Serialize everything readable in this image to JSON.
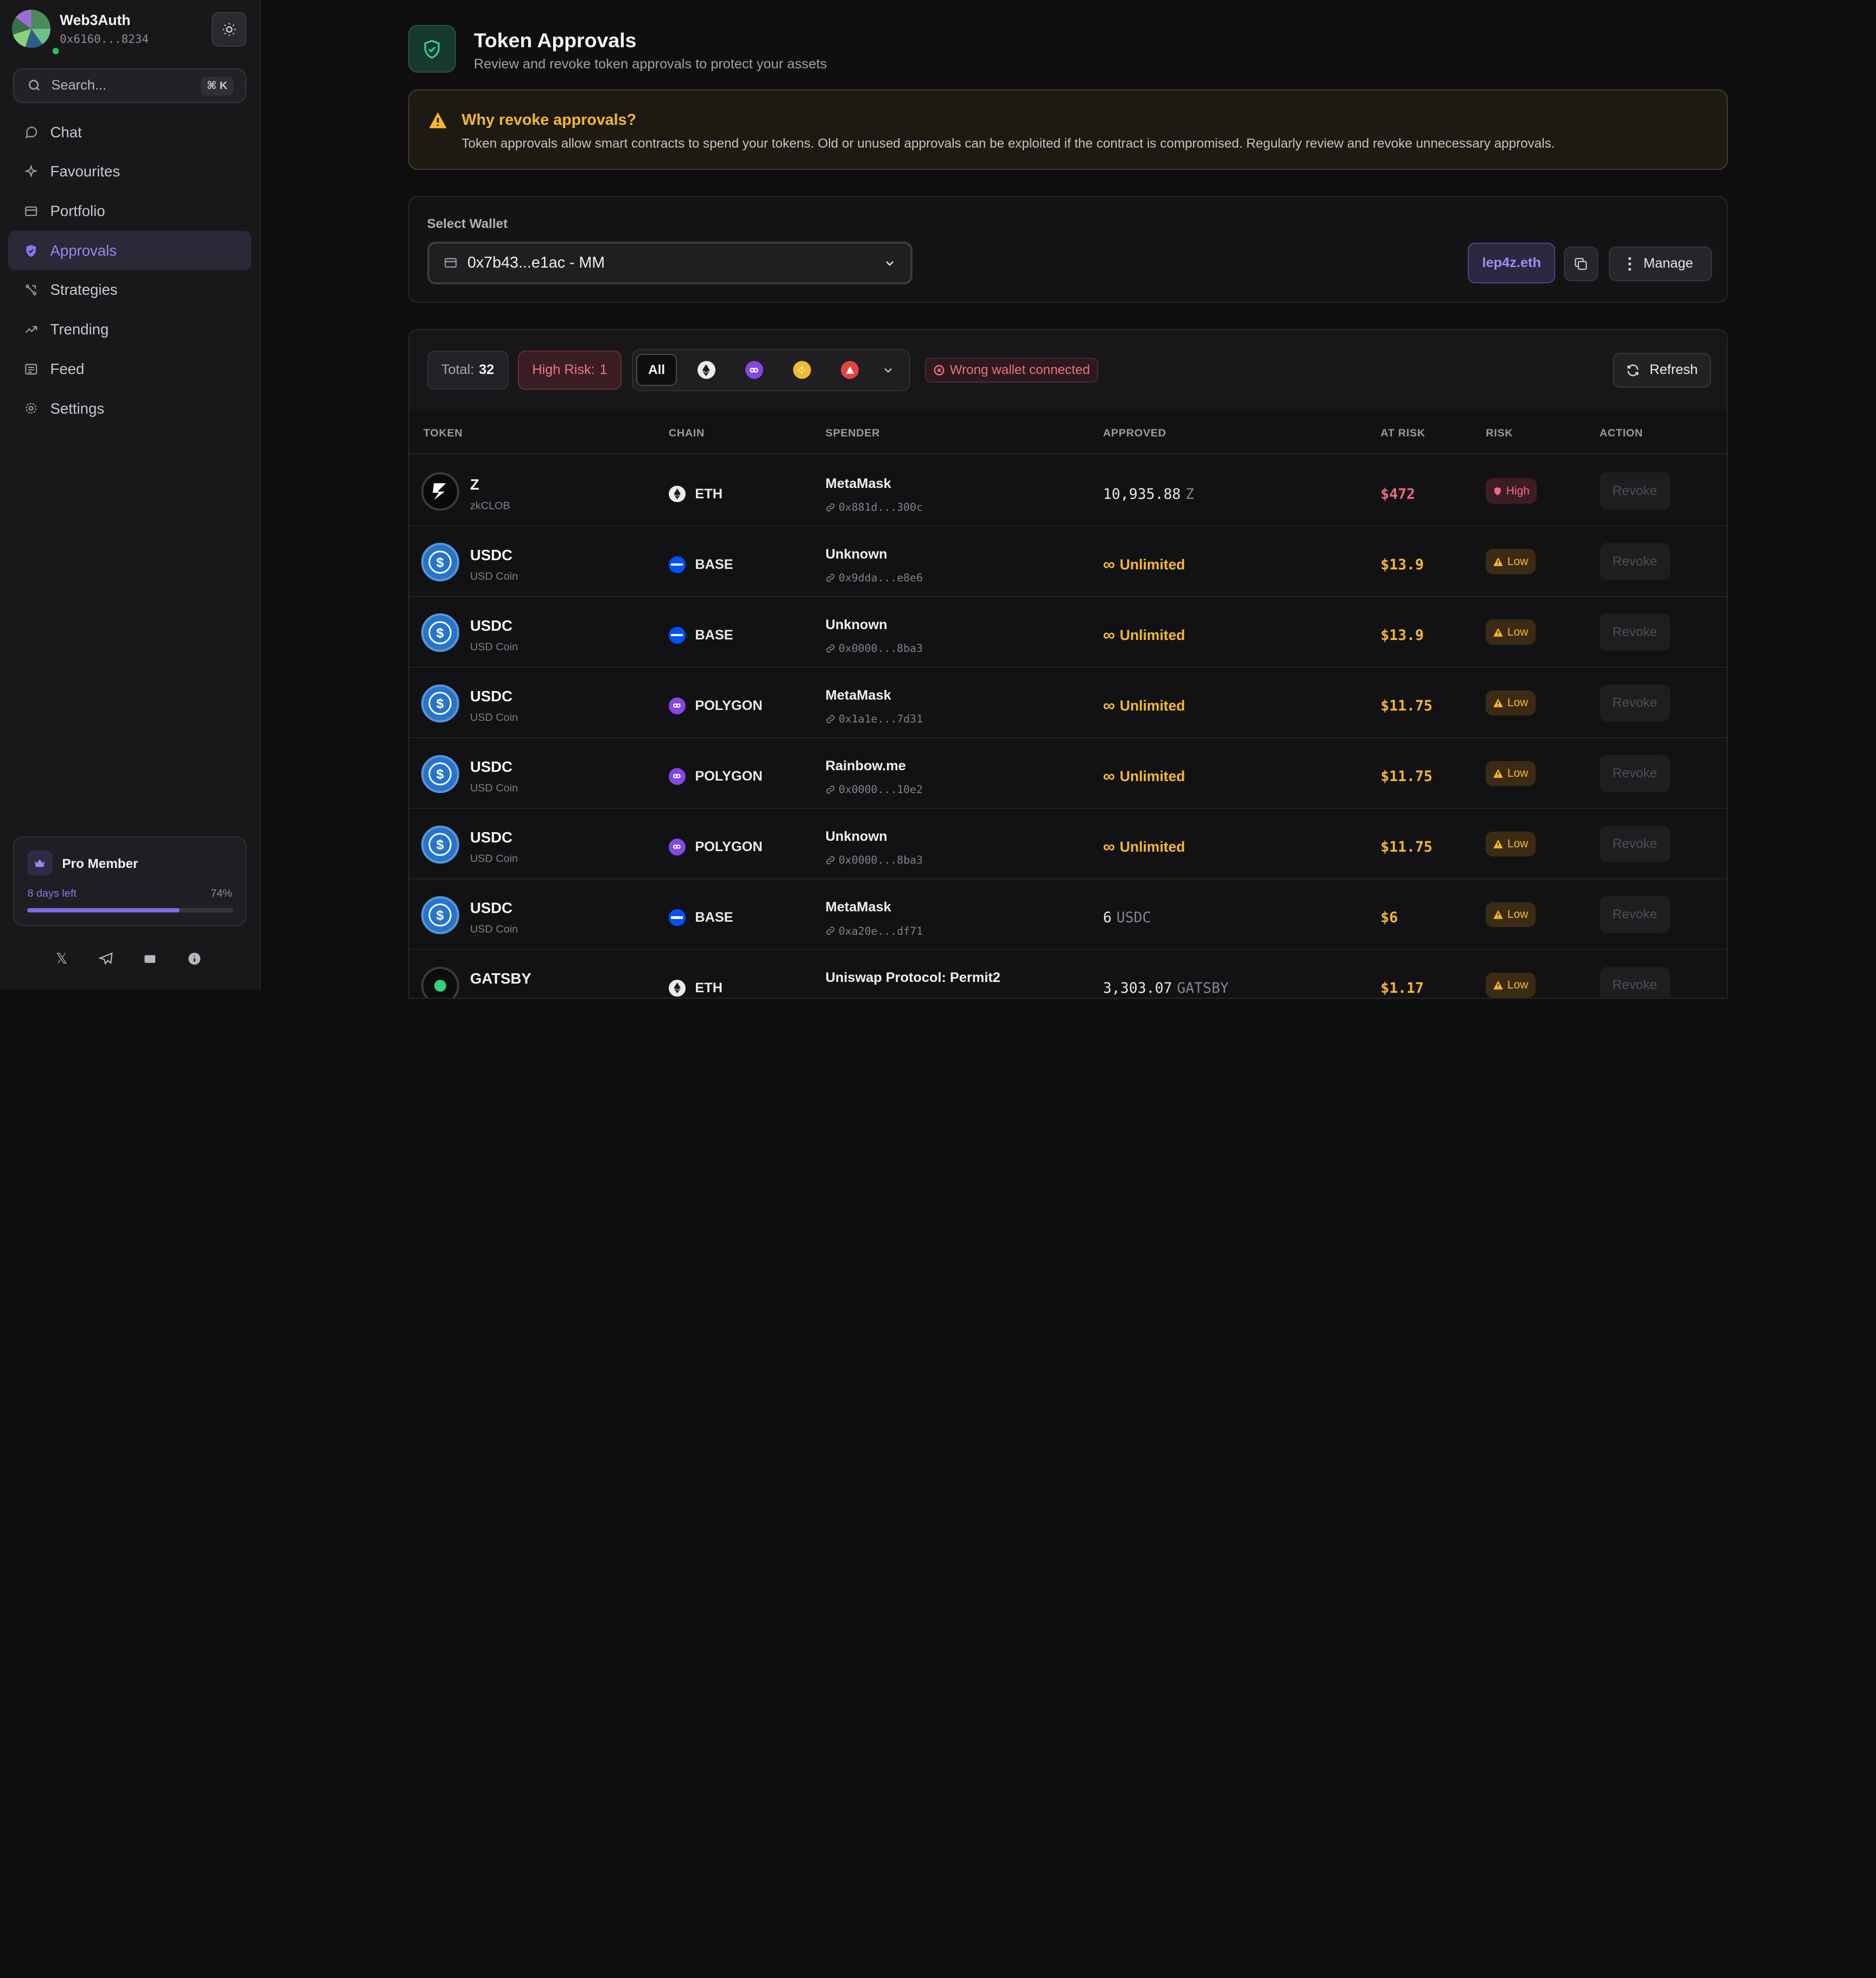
{
  "sidebar": {
    "brand_name": "Web3Auth",
    "brand_address": "0x6160...8234",
    "search_placeholder": "Search...",
    "search_shortcut": "⌘ K",
    "items": [
      {
        "label": "Chat",
        "icon": "chat-icon"
      },
      {
        "label": "Favourites",
        "icon": "sparkle-icon"
      },
      {
        "label": "Portfolio",
        "icon": "wallet-icon"
      },
      {
        "label": "Approvals",
        "icon": "shield-icon",
        "active": true
      },
      {
        "label": "Strategies",
        "icon": "strategy-icon"
      },
      {
        "label": "Trending",
        "icon": "trending-icon"
      },
      {
        "label": "Feed",
        "icon": "feed-icon"
      },
      {
        "label": "Settings",
        "icon": "gear-icon"
      }
    ],
    "pro": {
      "title": "Pro Member",
      "days_left": "8 days left",
      "percent_text": "74%",
      "progress": 0.74
    }
  },
  "header": {
    "title": "Token Approvals",
    "subtitle": "Review and revoke token approvals to protect your assets"
  },
  "warning": {
    "title": "Why revoke approvals?",
    "text": "Token approvals allow smart contracts to spend your tokens. Old or unused approvals can be exploited if the contract is compromised. Regularly review and revoke unnecessary approvals."
  },
  "wallet": {
    "label": "Select Wallet",
    "value": "0x7b43...e1ac - MM",
    "ens": "lep4z.eth",
    "manage_label": "Manage"
  },
  "toolbar": {
    "total_label": "Total:",
    "total_value": "32",
    "high_risk_label": "High Risk:",
    "high_risk_value": "1",
    "filter_all": "All",
    "wrong_wallet": "Wrong wallet connected",
    "refresh_label": "Refresh"
  },
  "table": {
    "headers": [
      "TOKEN",
      "CHAIN",
      "SPENDER",
      "APPROVED",
      "AT RISK",
      "RISK",
      "ACTION"
    ],
    "rows": [
      {
        "symbol": "Z",
        "name": "zkCLOB",
        "chain": "ETH",
        "spender": "MetaMask",
        "spender_addr": "0x881d...300c",
        "approved": "10,935.88",
        "approved_unit": "Z",
        "at_risk": "$472",
        "risk": "High",
        "action": "Revoke"
      },
      {
        "symbol": "USDC",
        "name": "USD Coin",
        "chain": "BASE",
        "spender": "Unknown",
        "spender_addr": "0x9dda...e8e6",
        "approved": "Unlimited",
        "approved_unit": "",
        "at_risk": "$13.9",
        "risk": "Low",
        "action": "Revoke"
      },
      {
        "symbol": "USDC",
        "name": "USD Coin",
        "chain": "BASE",
        "spender": "Unknown",
        "spender_addr": "0x0000...8ba3",
        "approved": "Unlimited",
        "approved_unit": "",
        "at_risk": "$13.9",
        "risk": "Low",
        "action": "Revoke"
      },
      {
        "symbol": "USDC",
        "name": "USD Coin",
        "chain": "POLYGON",
        "spender": "MetaMask",
        "spender_addr": "0x1a1e...7d31",
        "approved": "Unlimited",
        "approved_unit": "",
        "at_risk": "$11.75",
        "risk": "Low",
        "action": "Revoke"
      },
      {
        "symbol": "USDC",
        "name": "USD Coin",
        "chain": "POLYGON",
        "spender": "Rainbow.me",
        "spender_addr": "0x0000...10e2",
        "approved": "Unlimited",
        "approved_unit": "",
        "at_risk": "$11.75",
        "risk": "Low",
        "action": "Revoke"
      },
      {
        "symbol": "USDC",
        "name": "USD Coin",
        "chain": "POLYGON",
        "spender": "Unknown",
        "spender_addr": "0x0000...8ba3",
        "approved": "Unlimited",
        "approved_unit": "",
        "at_risk": "$11.75",
        "risk": "Low",
        "action": "Revoke"
      },
      {
        "symbol": "USDC",
        "name": "USD Coin",
        "chain": "BASE",
        "spender": "MetaMask",
        "spender_addr": "0xa20e...df71",
        "approved": "6",
        "approved_unit": "USDC",
        "at_risk": "$6",
        "risk": "Low",
        "action": "Revoke"
      },
      {
        "symbol": "GATSBY",
        "name": "",
        "chain": "ETH",
        "spender": "Uniswap Protocol: Permit2",
        "spender_addr": "",
        "approved": "3,303.07",
        "approved_unit": "GATSBY",
        "at_risk": "$1.17",
        "risk": "Low",
        "action": "Revoke"
      }
    ]
  },
  "colors": {
    "accent": "#7c6ae6",
    "warning": "#f5b82e",
    "danger": "#f06b7f"
  }
}
